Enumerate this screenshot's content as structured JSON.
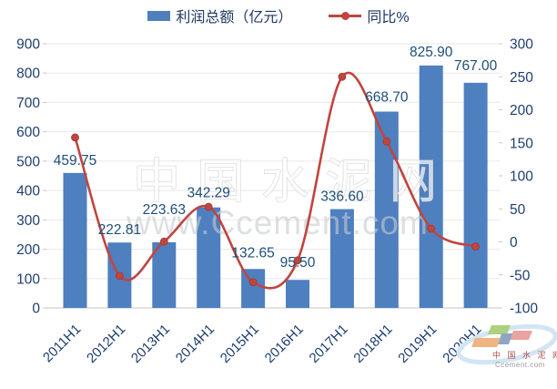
{
  "legend": {
    "bar_label": "利润总额（亿元）",
    "line_label": "同比%"
  },
  "watermark": {
    "center_text": "中 国 水 泥 网",
    "url_text": "www.Ccement.com",
    "logo_title": "中 国 水 泥 网",
    "logo_sub": "Ccement.com"
  },
  "colors": {
    "bar": "#4e7fbf",
    "line": "#c0453f",
    "marker_edge": "#9a3a35",
    "axis_text": "#1e3e70",
    "data_label": "#1f4e79",
    "grid": "#ececec",
    "axis_line": "#d9d9d9",
    "tick": "#c9c9c9"
  },
  "chart_data": {
    "type": "bar+line",
    "categories": [
      "2011H1",
      "2012H1",
      "2013H1",
      "2014H1",
      "2015H1",
      "2016H1",
      "2017H1",
      "2018H1",
      "2019H1",
      "2020H1"
    ],
    "series": [
      {
        "name": "利润总额（亿元）",
        "type": "bar",
        "axis": "left",
        "values": [
          459.75,
          222.81,
          223.63,
          342.29,
          132.65,
          95.5,
          336.6,
          668.7,
          825.9,
          767.0
        ]
      },
      {
        "name": "同比%",
        "type": "line",
        "axis": "right",
        "values": [
          158,
          -51.5,
          0.4,
          53,
          -61,
          -28,
          250,
          152,
          20,
          -7
        ]
      }
    ],
    "left_axis": {
      "min": 0,
      "max": 900,
      "step": 100
    },
    "right_axis": {
      "min": -100,
      "max": 300,
      "step": 50
    },
    "grid": "horizontal",
    "legend_position": "top-center",
    "bar_labels_visible": true,
    "label_dy": [
      0,
      0,
      -22,
      -2,
      -4,
      -5,
      0,
      -2,
      -1,
      -5
    ]
  }
}
